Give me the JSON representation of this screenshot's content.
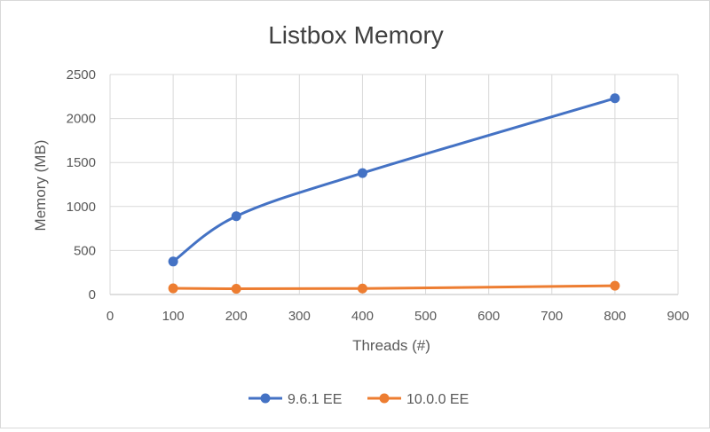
{
  "chart_data": {
    "type": "scatter",
    "title": "Listbox Memory",
    "xlabel": "Threads (#)",
    "ylabel": "Memory (MB)",
    "xlim": [
      0,
      900
    ],
    "ylim": [
      0,
      2500
    ],
    "xticks": [
      0,
      100,
      200,
      300,
      400,
      500,
      600,
      700,
      800,
      900
    ],
    "yticks": [
      0,
      500,
      1000,
      1500,
      2000,
      2500
    ],
    "grid": true,
    "legend_position": "bottom",
    "series": [
      {
        "name": "9.6.1 EE",
        "color": "#4472C4",
        "smooth": true,
        "x": [
          100,
          200,
          400,
          800
        ],
        "y": [
          375,
          890,
          1380,
          2230
        ]
      },
      {
        "name": "10.0.0 EE",
        "color": "#ED7D31",
        "smooth": true,
        "x": [
          100,
          200,
          400,
          800
        ],
        "y": [
          70,
          65,
          68,
          100
        ]
      }
    ]
  }
}
